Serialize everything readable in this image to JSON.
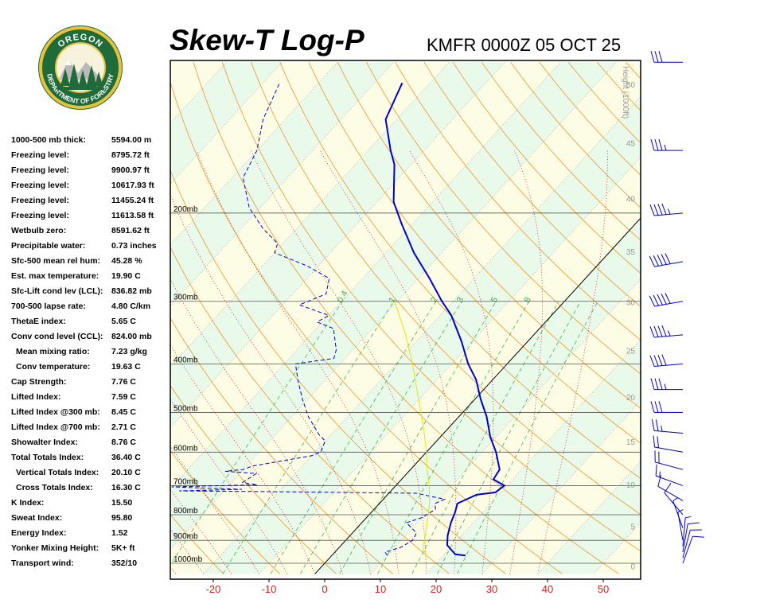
{
  "header": {
    "title": "Skew-T Log-P",
    "station": "KMFR 0000Z 05 OCT 25",
    "logo_text_top": "OREGON",
    "logo_text_bottom": "DEPARTMENT OF FORESTRY"
  },
  "indices": [
    {
      "label": "1000-500 mb thick:",
      "value": "5594.00 m",
      "indent": false
    },
    {
      "label": "Freezing level:",
      "value": "8795.72 ft",
      "indent": false
    },
    {
      "label": "Freezing level:",
      "value": "9900.97 ft",
      "indent": false
    },
    {
      "label": "Freezing level:",
      "value": "10617.93 ft",
      "indent": false
    },
    {
      "label": "Freezing level:",
      "value": "11455.24 ft",
      "indent": false
    },
    {
      "label": "Freezing level:",
      "value": "11613.58 ft",
      "indent": false
    },
    {
      "label": "Wetbulb zero:",
      "value": "8591.62 ft",
      "indent": false
    },
    {
      "label": "Precipitable water:",
      "value": "0.73 inches",
      "indent": false
    },
    {
      "label": "Sfc-500 mean rel hum:",
      "value": "45.28 %",
      "indent": false
    },
    {
      "label": "Est. max temperature:",
      "value": "19.90 C",
      "indent": false
    },
    {
      "label": "Sfc-Lift cond lev (LCL):",
      "value": "836.82 mb",
      "indent": false
    },
    {
      "label": "700-500 lapse rate:",
      "value": "4.80 C/km",
      "indent": false
    },
    {
      "label": "ThetaE index:",
      "value": "5.65 C",
      "indent": false
    },
    {
      "label": "Conv cond level (CCL):",
      "value": "824.00 mb",
      "indent": false
    },
    {
      "label": "Mean mixing ratio:",
      "value": "7.23 g/kg",
      "indent": true
    },
    {
      "label": "Conv temperature:",
      "value": "19.63 C",
      "indent": true
    },
    {
      "label": "Cap Strength:",
      "value": "7.76 C",
      "indent": false
    },
    {
      "label": "Lifted Index:",
      "value": "7.59 C",
      "indent": false
    },
    {
      "label": "Lifted Index @300 mb:",
      "value": "8.45 C",
      "indent": false
    },
    {
      "label": "Lifted Index @700 mb:",
      "value": "2.71 C",
      "indent": false
    },
    {
      "label": "Showalter Index:",
      "value": "8.76 C",
      "indent": false
    },
    {
      "label": "Total Totals Index:",
      "value": "36.40 C",
      "indent": false
    },
    {
      "label": "Vertical Totals Index:",
      "value": "20.10 C",
      "indent": true
    },
    {
      "label": "Cross Totals Index:",
      "value": "16.30 C",
      "indent": true
    },
    {
      "label": "K Index:",
      "value": "15.50",
      "indent": false
    },
    {
      "label": "Sweat Index:",
      "value": "95.80",
      "indent": false
    },
    {
      "label": "Energy Index:",
      "value": "1.52",
      "indent": false
    },
    {
      "label": "Yonker Mixing Height:",
      "value": "5K+ ft",
      "indent": false
    },
    {
      "label": "Transport wind:",
      "value": "352/10",
      "indent": false
    }
  ],
  "chart_data": {
    "type": "line",
    "xlabel": "",
    "ylabel": "",
    "x_ticks": [
      -20,
      -10,
      0,
      10,
      20,
      30,
      40,
      50
    ],
    "xlim": [
      -28,
      56
    ],
    "ylim_mb": [
      1050,
      100
    ],
    "isobars": [
      {
        "p": 200,
        "label": "200mb"
      },
      {
        "p": 300,
        "label": "300mb"
      },
      {
        "p": 400,
        "label": "400mb"
      },
      {
        "p": 500,
        "label": "500mb"
      },
      {
        "p": 600,
        "label": "600mb"
      },
      {
        "p": 700,
        "label": "700mb"
      },
      {
        "p": 800,
        "label": "800mb"
      },
      {
        "p": 900,
        "label": "900mb"
      },
      {
        "p": 1000,
        "label": "1000mb"
      }
    ],
    "height_axis": {
      "label": "Height (1000ft)",
      "ticks": [
        {
          "label": "0",
          "kft": 0
        },
        {
          "label": "5",
          "kft": 5
        },
        {
          "label": "10",
          "kft": 10
        },
        {
          "label": "15",
          "kft": 15
        },
        {
          "label": "20",
          "kft": 20
        },
        {
          "label": "25",
          "kft": 25
        },
        {
          "label": "30",
          "kft": 30
        },
        {
          "label": "35",
          "kft": 35
        },
        {
          "label": "40",
          "kft": 40
        },
        {
          "label": "45",
          "kft": 45
        },
        {
          "label": "50",
          "kft": 50
        }
      ]
    },
    "mixing_ratio_labels": [
      "0.4",
      "1",
      "2",
      "3",
      "5",
      "8"
    ],
    "series": [
      {
        "name": "",
        "color": "#0000cc",
        "style": "solid",
        "points": [
          {
            "p": 965,
            "t": 24
          },
          {
            "p": 960,
            "t": 22
          },
          {
            "p": 940,
            "t": 20.5
          },
          {
            "p": 920,
            "t": 19
          },
          {
            "p": 880,
            "t": 17.5
          },
          {
            "p": 830,
            "t": 16
          },
          {
            "p": 790,
            "t": 15
          },
          {
            "p": 760,
            "t": 14
          },
          {
            "p": 730,
            "t": 16
          },
          {
            "p": 722,
            "t": 19
          },
          {
            "p": 700,
            "t": 19.5
          },
          {
            "p": 690,
            "t": 18
          },
          {
            "p": 680,
            "t": 16.5
          },
          {
            "p": 650,
            "t": 16
          },
          {
            "p": 600,
            "t": 12.5
          },
          {
            "p": 560,
            "t": 9
          },
          {
            "p": 510,
            "t": 5
          },
          {
            "p": 470,
            "t": 1
          },
          {
            "p": 430,
            "t": -3
          },
          {
            "p": 400,
            "t": -7
          },
          {
            "p": 360,
            "t": -12
          },
          {
            "p": 320,
            "t": -18
          },
          {
            "p": 300,
            "t": -22
          },
          {
            "p": 270,
            "t": -28
          },
          {
            "p": 240,
            "t": -35
          },
          {
            "p": 210,
            "t": -42
          },
          {
            "p": 190,
            "t": -47
          },
          {
            "p": 160,
            "t": -53
          },
          {
            "p": 150,
            "t": -56
          },
          {
            "p": 130,
            "t": -62
          },
          {
            "p": 110,
            "t": -65
          }
        ]
      },
      {
        "name": "",
        "color": "#0000cc",
        "style": "dashed",
        "points": [
          {
            "p": 965,
            "t": 10
          },
          {
            "p": 950,
            "t": 9
          },
          {
            "p": 930,
            "t": 11
          },
          {
            "p": 900,
            "t": 12
          },
          {
            "p": 870,
            "t": 11.5
          },
          {
            "p": 830,
            "t": 8
          },
          {
            "p": 810,
            "t": 10
          },
          {
            "p": 780,
            "t": 11
          },
          {
            "p": 760,
            "t": 10
          },
          {
            "p": 745,
            "t": 11
          },
          {
            "p": 735,
            "t": 8
          },
          {
            "p": 725,
            "t": 5
          },
          {
            "p": 720,
            "t": -18
          },
          {
            "p": 717,
            "t": -38
          },
          {
            "p": 712,
            "t": -27
          },
          {
            "p": 704,
            "t": -40
          },
          {
            "p": 697,
            "t": -25
          },
          {
            "p": 690,
            "t": -28
          },
          {
            "p": 662,
            "t": -27
          },
          {
            "p": 655,
            "t": -33
          },
          {
            "p": 650,
            "t": -30
          },
          {
            "p": 640,
            "t": -29
          },
          {
            "p": 610,
            "t": -20
          },
          {
            "p": 600,
            "t": -19
          },
          {
            "p": 570,
            "t": -20
          },
          {
            "p": 555,
            "t": -22
          },
          {
            "p": 510,
            "t": -27
          },
          {
            "p": 470,
            "t": -31
          },
          {
            "p": 430,
            "t": -35
          },
          {
            "p": 400,
            "t": -38
          },
          {
            "p": 390,
            "t": -32
          },
          {
            "p": 375,
            "t": -33
          },
          {
            "p": 340,
            "t": -37
          },
          {
            "p": 330,
            "t": -41
          },
          {
            "p": 320,
            "t": -40
          },
          {
            "p": 305,
            "t": -47
          },
          {
            "p": 290,
            "t": -44
          },
          {
            "p": 270,
            "t": -46
          },
          {
            "p": 255,
            "t": -52
          },
          {
            "p": 240,
            "t": -60
          },
          {
            "p": 230,
            "t": -61
          },
          {
            "p": 215,
            "t": -66
          },
          {
            "p": 195,
            "t": -72
          },
          {
            "p": 170,
            "t": -78
          },
          {
            "p": 150,
            "t": -80
          },
          {
            "p": 130,
            "t": -84
          },
          {
            "p": 110,
            "t": -87
          }
        ]
      },
      {
        "name": "",
        "color": "#e6e600",
        "style": "solid",
        "points": [
          {
            "p": 965,
            "t": 17
          },
          {
            "p": 930,
            "t": 15
          },
          {
            "p": 880,
            "t": 13.5
          },
          {
            "p": 837,
            "t": 12
          },
          {
            "p": 760,
            "t": 9
          },
          {
            "p": 700,
            "t": 6
          },
          {
            "p": 650,
            "t": 3
          },
          {
            "p": 600,
            "t": 0
          },
          {
            "p": 550,
            "t": -3.5
          },
          {
            "p": 500,
            "t": -7.5
          },
          {
            "p": 450,
            "t": -12
          },
          {
            "p": 400,
            "t": -17
          },
          {
            "p": 350,
            "t": -23
          },
          {
            "p": 300,
            "t": -30.5
          }
        ]
      }
    ],
    "wind_barbs": [
      {
        "p": 1000,
        "dir": 20,
        "kt": 10
      },
      {
        "p": 975,
        "dir": 15,
        "kt": 10
      },
      {
        "p": 950,
        "dir": 10,
        "kt": 10
      },
      {
        "p": 925,
        "dir": 5,
        "kt": 5
      },
      {
        "p": 900,
        "dir": 350,
        "kt": 5
      },
      {
        "p": 850,
        "dir": 340,
        "kt": 5
      },
      {
        "p": 800,
        "dir": 320,
        "kt": 10
      },
      {
        "p": 750,
        "dir": 300,
        "kt": 10
      },
      {
        "p": 700,
        "dir": 290,
        "kt": 15
      },
      {
        "p": 650,
        "dir": 285,
        "kt": 20
      },
      {
        "p": 600,
        "dir": 280,
        "kt": 20
      },
      {
        "p": 550,
        "dir": 275,
        "kt": 25
      },
      {
        "p": 500,
        "dir": 270,
        "kt": 30
      },
      {
        "p": 450,
        "dir": 270,
        "kt": 35
      },
      {
        "p": 400,
        "dir": 265,
        "kt": 40
      },
      {
        "p": 350,
        "dir": 265,
        "kt": 45
      },
      {
        "p": 300,
        "dir": 260,
        "kt": 50
      },
      {
        "p": 250,
        "dir": 260,
        "kt": 50
      },
      {
        "p": 200,
        "dir": 265,
        "kt": 45
      },
      {
        "p": 150,
        "dir": 270,
        "kt": 35
      },
      {
        "p": 100,
        "dir": 270,
        "kt": 30
      }
    ]
  }
}
